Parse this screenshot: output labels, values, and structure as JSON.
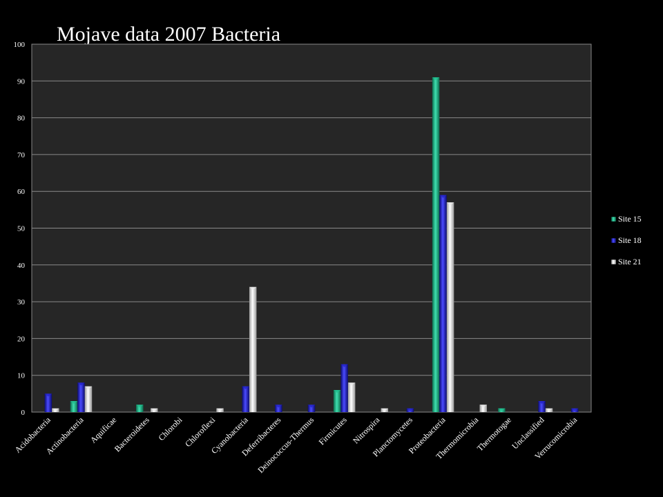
{
  "chart_data": {
    "type": "bar",
    "title": "Mojave data 2007 Bacteria",
    "xlabel": "",
    "ylabel": "",
    "ylim": [
      0,
      100
    ],
    "yticks": [
      0,
      10,
      20,
      30,
      40,
      50,
      60,
      70,
      80,
      90,
      100
    ],
    "grid": true,
    "legend_position": "right",
    "categories": [
      "Acidobacteria",
      "Actinobacteria",
      "Aquificae",
      "Bacteroidetes",
      "Chlorobi",
      "Chloroflexi",
      "Cyanobacteria",
      "Deferribacteres",
      "Deinococcus-Thermus",
      "Firmicutes",
      "Nitrospira",
      "Planctomycetes",
      "Proteobacteria",
      "Thermomicrobia",
      "Thermotogae",
      "Unclassified",
      "Verrucomicrobia"
    ],
    "series": [
      {
        "name": "Site 15",
        "color": "#1fbf8f",
        "values": [
          0,
          3,
          0,
          2,
          0,
          0,
          0,
          0,
          0,
          6,
          0,
          0,
          91,
          0,
          1,
          0,
          0
        ]
      },
      {
        "name": "Site 18",
        "color": "#2222cc",
        "values": [
          5,
          8,
          0,
          0,
          0,
          0,
          7,
          2,
          2,
          13,
          0,
          1,
          59,
          0,
          0,
          3,
          1
        ]
      },
      {
        "name": "Site 21",
        "color": "#e8e8e8",
        "values": [
          1,
          7,
          0,
          1,
          0,
          1,
          34,
          0,
          0,
          8,
          1,
          0,
          57,
          2,
          0,
          1,
          0
        ]
      }
    ]
  }
}
